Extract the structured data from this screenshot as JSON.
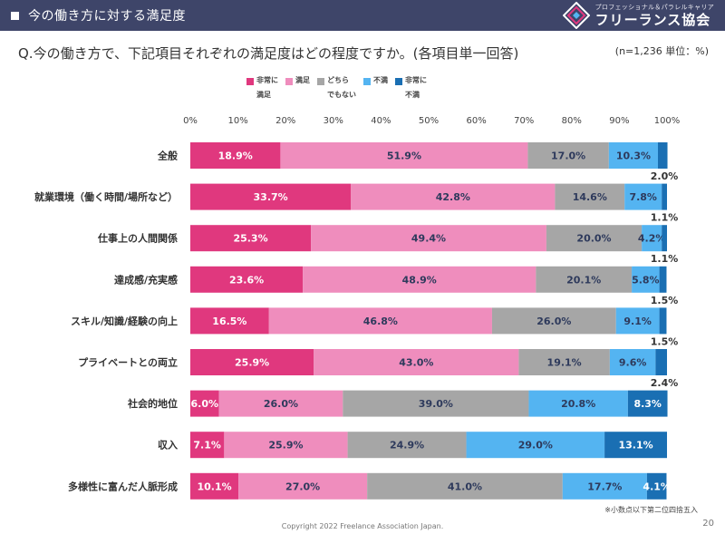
{
  "header": {
    "title": "今の働き方に対する満足度",
    "logo_sub": "プロフェッショナル＆パラレルキャリア",
    "logo_main": "フリーランス協会"
  },
  "question": "Q.今の働き方で、下記項目それぞれの満足度はどの程度ですか。(各項目単一回答)",
  "note": "(n=1,236 単位：%)",
  "footnote": "※小数点以下第二位四捨五入",
  "copyright": "Copyright 2022 Freelance Association Japan.",
  "page_number": "20",
  "colors": {
    "very_satisfied": "#e0387e",
    "satisfied": "#ef8dbd",
    "neutral": "#a6a6a6",
    "dissatisfied": "#54b4f1",
    "very_dissatisfied": "#1a6fb3",
    "header_bg": "#3e4569"
  },
  "chart_data": {
    "type": "bar",
    "orientation": "horizontal",
    "stacked": true,
    "xlim": [
      0,
      100
    ],
    "x_ticks": [
      "0%",
      "10%",
      "20%",
      "30%",
      "40%",
      "50%",
      "60%",
      "70%",
      "80%",
      "90%",
      "100%"
    ],
    "grid": false,
    "legend_position": "top",
    "categories": [
      "全般",
      "就業環境（働く時間/場所など）",
      "仕事上の人間関係",
      "達成感/充実感",
      "スキル/知識/経験の向上",
      "プライベートとの両立",
      "社会的地位",
      "収入",
      "多様性に富んだ人脈形成"
    ],
    "series": [
      {
        "name": "非常に満足",
        "legend_lines": [
          "非常に",
          "満足"
        ],
        "values": [
          18.9,
          33.7,
          25.3,
          23.6,
          16.5,
          25.9,
          6.0,
          7.1,
          10.1
        ],
        "labels": [
          "18.9%",
          "33.7%",
          "25.3%",
          "23.6%",
          "16.5%",
          "25.9%",
          "6.0%",
          "7.1%",
          "10.1%"
        ]
      },
      {
        "name": "満足",
        "legend_lines": [
          "満足"
        ],
        "values": [
          51.9,
          42.8,
          49.4,
          48.9,
          46.8,
          43.0,
          26.0,
          25.9,
          27.0
        ],
        "labels": [
          "51.9%",
          "42.8%",
          "49.4%",
          "48.9%",
          "46.8%",
          "43.0%",
          "26.0%",
          "25.9%",
          "27.0%"
        ]
      },
      {
        "name": "どちらでもない",
        "legend_lines": [
          "どちら",
          "でもない"
        ],
        "values": [
          17.0,
          14.6,
          20.0,
          20.1,
          26.0,
          19.1,
          39.0,
          24.9,
          41.0
        ],
        "labels": [
          "17.0%",
          "14.6%",
          "20.0%",
          "20.1%",
          "26.0%",
          "19.1%",
          "39.0%",
          "24.9%",
          "41.0%"
        ]
      },
      {
        "name": "不満",
        "legend_lines": [
          "不満"
        ],
        "values": [
          10.3,
          7.8,
          4.2,
          5.8,
          9.1,
          9.6,
          20.8,
          29.0,
          17.7
        ],
        "labels": [
          "10.3%",
          "7.8%",
          "4.2%",
          "5.8%",
          "9.1%",
          "9.6%",
          "20.8%",
          "29.0%",
          "17.7%"
        ]
      },
      {
        "name": "非常に不満",
        "legend_lines": [
          "非常に",
          "不満"
        ],
        "values": [
          2.0,
          1.1,
          1.1,
          1.5,
          1.5,
          2.4,
          8.3,
          13.1,
          4.1
        ],
        "labels": [
          "2.0%",
          "1.1%",
          "1.1%",
          "1.5%",
          "1.5%",
          "2.4%",
          "8.3%",
          "13.1%",
          "4.1%"
        ]
      }
    ]
  }
}
